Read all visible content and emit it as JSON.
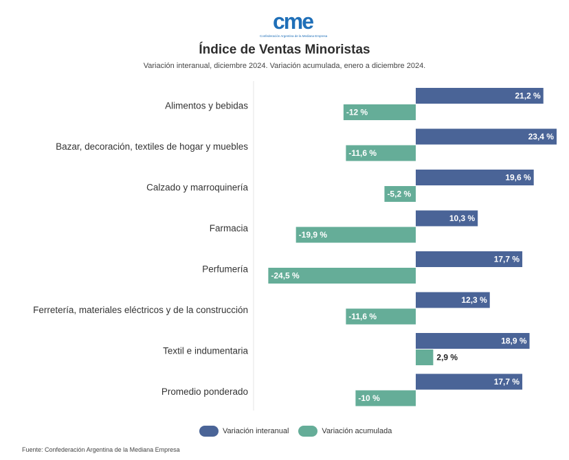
{
  "logo": {
    "name": "cme",
    "tagline": "Confederación Argentina de la Mediana Empresa"
  },
  "header": {
    "title": "Índice de Ventas Minoristas",
    "subtitle": "Variación interanual, diciembre 2024. Variación acumulada, enero a diciembre 2024."
  },
  "footer": {
    "source": "Fuente: Confederación Argentina de la Mediana Empresa"
  },
  "colors": {
    "interanual": "#4a6497",
    "acumulada": "#65ad98"
  },
  "chart_data": {
    "type": "bar",
    "orientation": "horizontal",
    "categories": [
      "Alimentos y bebidas",
      "Bazar, decoración, textiles de hogar y muebles",
      "Calzado y marroquinería",
      "Farmacia",
      "Perfumería",
      "Ferretería, materiales eléctricos y de la construcción",
      "Textil e indumentaria",
      "Promedio ponderado"
    ],
    "series": [
      {
        "name": "Variación interanual",
        "values": [
          21.2,
          23.4,
          19.6,
          10.3,
          17.7,
          12.3,
          18.9,
          17.7
        ],
        "labels": [
          "21,2 %",
          "23,4 %",
          "19,6 %",
          "10,3 %",
          "17,7 %",
          "12,3 %",
          "18,9 %",
          "17,7 %"
        ]
      },
      {
        "name": "Variación acumulada",
        "values": [
          -12,
          -11.6,
          -5.2,
          -19.9,
          -24.5,
          -11.6,
          2.9,
          -10
        ],
        "labels": [
          "-12 %",
          "-11,6 %",
          "-5,2 %",
          "-19,9 %",
          "-24,5 %",
          "-11,6 %",
          "2,9 %",
          "-10 %"
        ]
      }
    ],
    "xlim": [
      -24.5,
      23.4
    ],
    "grid": false,
    "legend_position": "bottom"
  }
}
